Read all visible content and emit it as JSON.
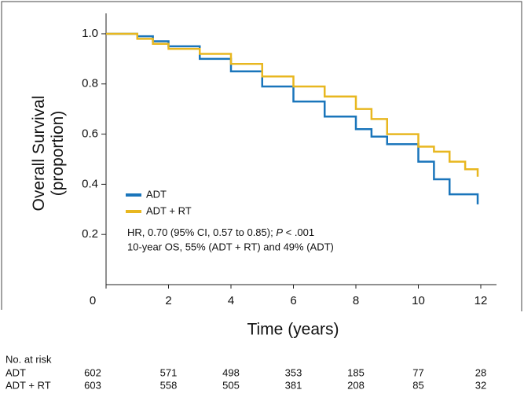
{
  "chart_data": {
    "type": "step",
    "ylabel": [
      "Overall Survival",
      "(proportion)"
    ],
    "xlabel": "Time (years)",
    "xlim": [
      0,
      12
    ],
    "xticks": [
      0,
      2,
      4,
      6,
      8,
      10,
      12
    ],
    "ylim": [
      0,
      1.05
    ],
    "yticks": [
      0.2,
      0.4,
      0.6,
      0.8,
      {
        "value": 1.0,
        "label": "1.0"
      }
    ],
    "x": [
      0,
      1,
      1.5,
      2,
      3,
      4,
      5,
      6,
      7,
      8,
      8.5,
      9,
      10,
      10.5,
      11,
      11.5,
      11.9
    ],
    "series": [
      {
        "name": "ADT",
        "color": "#1a75bb",
        "values": [
          1.0,
          0.99,
          0.97,
          0.95,
          0.9,
          0.85,
          0.79,
          0.73,
          0.67,
          0.62,
          0.59,
          0.56,
          0.49,
          0.42,
          0.36,
          0.36,
          0.32
        ]
      },
      {
        "name": "ADT + RT",
        "color": "#e8b720",
        "values": [
          1.0,
          0.98,
          0.96,
          0.94,
          0.92,
          0.88,
          0.83,
          0.79,
          0.75,
          0.7,
          0.66,
          0.6,
          0.55,
          0.53,
          0.49,
          0.46,
          0.43
        ]
      }
    ],
    "annotations": [
      [
        "HR, 0.70 (95% CI, 0.57 to 0.85); ",
        "P",
        " < .001"
      ],
      "10-year OS, 55% (ADT + RT) and 49% (ADT)"
    ],
    "risk_table": {
      "title": "No. at risk",
      "rows": [
        {
          "name": "ADT",
          "counts": [
            602,
            571,
            498,
            353,
            185,
            77,
            28
          ]
        },
        {
          "name": "ADT + RT",
          "counts": [
            603,
            558,
            505,
            381,
            208,
            85,
            32
          ]
        }
      ]
    }
  }
}
